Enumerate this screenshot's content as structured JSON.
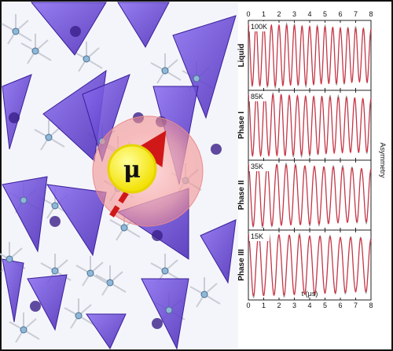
{
  "symbol": "μ",
  "chart_data": {
    "type": "line",
    "xlabel": "t (μs)",
    "ylabel": "Asymmetry",
    "xlim": [
      0,
      8
    ],
    "x_ticks": [
      0,
      1,
      2,
      3,
      4,
      5,
      6,
      7,
      8
    ],
    "panels": [
      {
        "phase": "Liquid",
        "temperature": "100K",
        "oscillations": 16
      },
      {
        "phase": "Phase I",
        "temperature": "85K",
        "oscillations": 15
      },
      {
        "phase": "Phase II",
        "temperature": "35K",
        "oscillations": 13
      },
      {
        "phase": "Phase III",
        "temperature": "15K",
        "oscillations": 12
      }
    ],
    "colors": {
      "fit": "#d9263a",
      "data": "#8a8a8a",
      "tetrahedra": "#6a3fd6"
    }
  }
}
